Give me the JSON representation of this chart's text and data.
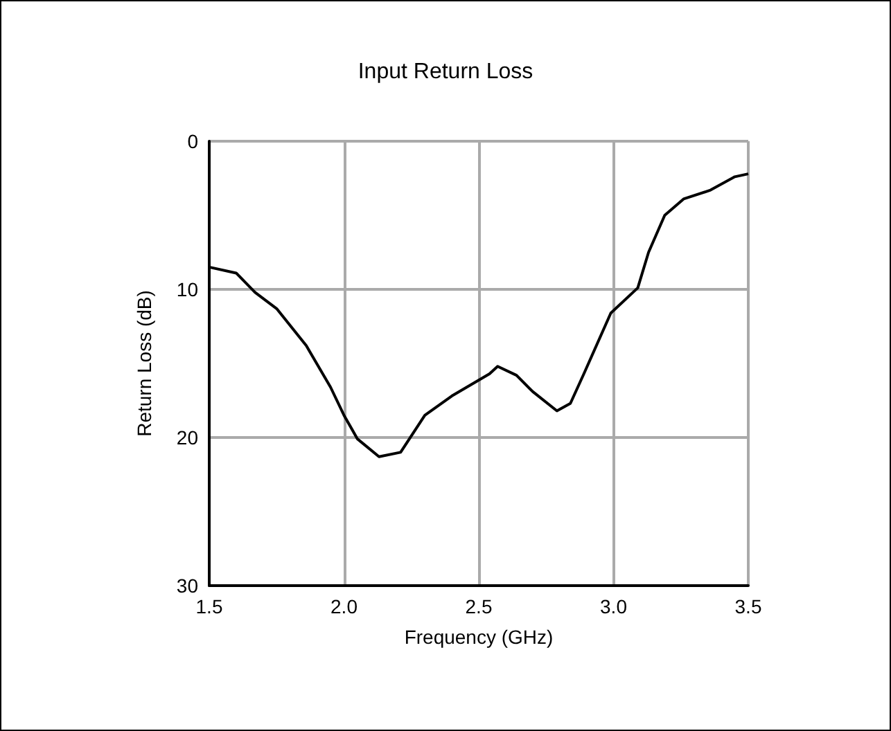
{
  "chart_data": {
    "type": "line",
    "title": "Input Return Loss",
    "xlabel": "Frequency (GHz)",
    "ylabel": "Return Loss (dB)",
    "x": [
      1.5,
      1.6,
      1.67,
      1.75,
      1.86,
      1.95,
      2.0,
      2.05,
      2.13,
      2.21,
      2.3,
      2.4,
      2.54,
      2.57,
      2.64,
      2.7,
      2.79,
      2.84,
      2.89,
      2.99,
      3.09,
      3.13,
      3.19,
      3.26,
      3.36,
      3.45,
      3.5
    ],
    "series": [
      {
        "color": "#000000",
        "values": [
          8.5,
          8.9,
          10.2,
          11.3,
          13.8,
          16.6,
          18.5,
          20.1,
          21.3,
          21.0,
          18.5,
          17.2,
          15.7,
          15.2,
          15.8,
          16.9,
          18.2,
          17.7,
          15.7,
          11.6,
          9.9,
          7.5,
          5.0,
          3.9,
          3.3,
          2.4,
          2.2
        ]
      }
    ],
    "xlim": [
      1.5,
      3.5
    ],
    "xticks": [
      {
        "value": 1.5,
        "label": "1.5"
      },
      {
        "value": 2,
        "label": "2.0"
      },
      {
        "value": 2.5,
        "label": "2.5"
      },
      {
        "value": 3,
        "label": "3.0"
      },
      {
        "value": 3.5,
        "label": "3.5"
      }
    ],
    "ylim": [
      30,
      0
    ],
    "yticks": [
      0,
      10,
      20,
      30
    ],
    "grid": true,
    "marker": "none",
    "line_style": "solid"
  }
}
